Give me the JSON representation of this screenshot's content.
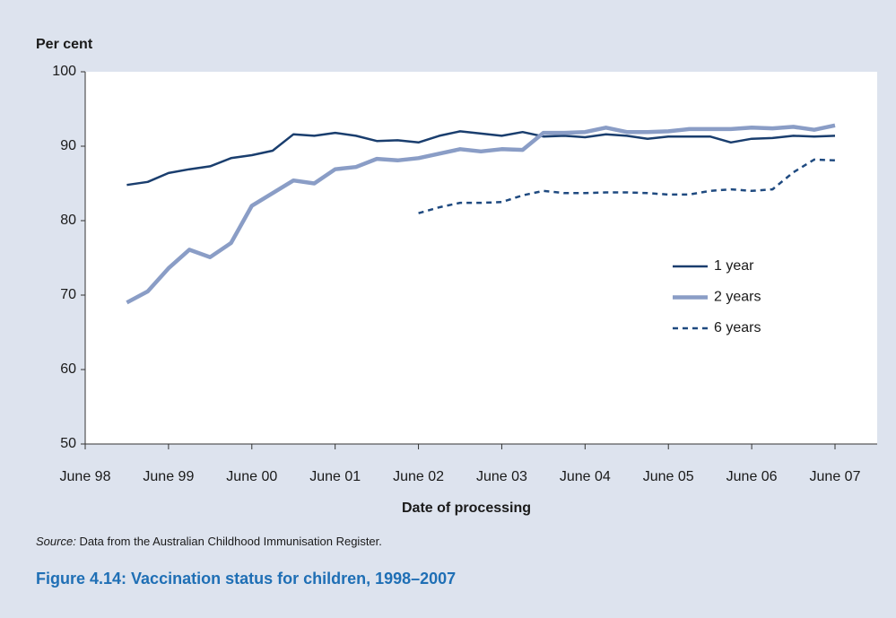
{
  "chart_data": {
    "type": "line",
    "title": "Figure 4.14: Vaccination status for children, 1998–2007",
    "ylabel": "Per cent",
    "xlabel": "Date of processing",
    "source_label": "Source:",
    "source_text": "Data from the Australian Childhood Immunisation Register.",
    "categories": [
      "June 98",
      null,
      null,
      null,
      "June 99",
      null,
      null,
      null,
      "June 00",
      null,
      null,
      null,
      "June 01",
      null,
      null,
      null,
      "June 02",
      null,
      null,
      null,
      "June 03",
      null,
      null,
      null,
      "June 04",
      null,
      null,
      null,
      "June 05",
      null,
      null,
      null,
      "June 06",
      null,
      null,
      null,
      "June 07"
    ],
    "ylim": [
      50,
      100
    ],
    "yticks": [
      50,
      60,
      70,
      80,
      90,
      100
    ],
    "legend": "right",
    "series": [
      {
        "name": "1 year",
        "color": "#1a3e6e",
        "linestyle": "solid",
        "values": [
          null,
          null,
          84.8,
          85.2,
          86.4,
          86.9,
          87.3,
          88.4,
          88.8,
          89.4,
          91.6,
          91.4,
          91.8,
          91.4,
          90.7,
          90.8,
          90.5,
          91.4,
          92.0,
          91.7,
          91.4,
          91.9,
          91.3,
          91.4,
          91.2,
          91.6,
          91.4,
          91.0,
          91.3,
          91.3,
          91.3,
          90.5,
          91.0,
          91.1,
          91.4,
          91.3,
          91.4
        ]
      },
      {
        "name": "2 years",
        "color": "#8a9dc6",
        "linestyle": "solid",
        "values": [
          null,
          null,
          69.0,
          70.5,
          73.6,
          76.1,
          75.1,
          77.0,
          82.0,
          83.7,
          85.4,
          85.0,
          86.9,
          87.2,
          88.3,
          88.1,
          88.4,
          89.0,
          89.6,
          89.3,
          89.6,
          89.5,
          91.8,
          91.8,
          91.9,
          92.5,
          91.9,
          91.9,
          92.0,
          92.3,
          92.3,
          92.3,
          92.5,
          92.4,
          92.6,
          92.2,
          92.8
        ]
      },
      {
        "name": "6 years",
        "color": "#1f4a80",
        "linestyle": "dashed",
        "values": [
          null,
          null,
          null,
          null,
          null,
          null,
          null,
          null,
          null,
          null,
          null,
          null,
          null,
          null,
          null,
          null,
          81.0,
          81.8,
          82.4,
          82.4,
          82.5,
          83.4,
          84.0,
          83.7,
          83.7,
          83.8,
          83.8,
          83.7,
          83.5,
          83.5,
          84.0,
          84.2,
          84.0,
          84.2,
          86.5,
          88.2,
          88.1
        ]
      }
    ]
  }
}
